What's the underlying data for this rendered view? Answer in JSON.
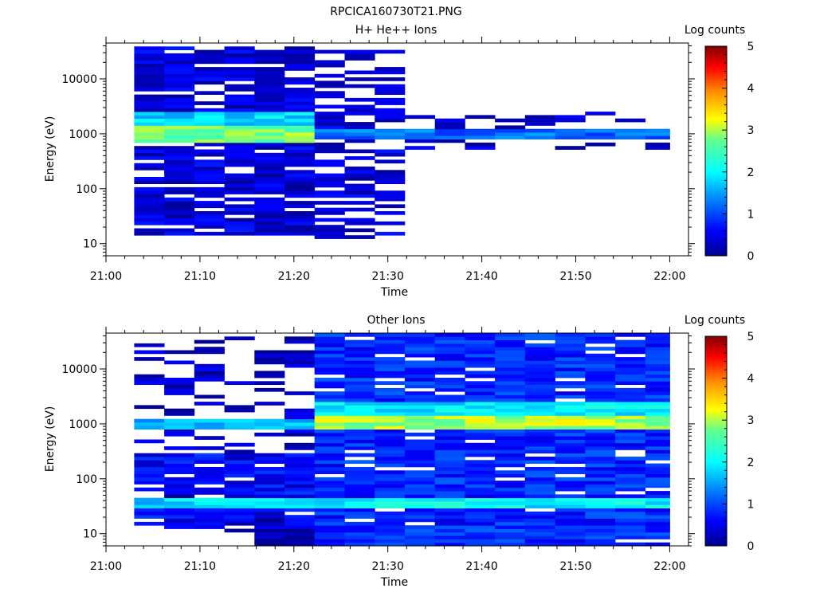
{
  "figure": {
    "title": "RPCICA160730T21.PNG"
  },
  "chart_data": [
    {
      "type": "heatmap",
      "title": "H+ He++ Ions",
      "xlabel": "Time",
      "ylabel": "Energy (eV)",
      "x_ticks": [
        "21:00",
        "21:10",
        "21:20",
        "21:30",
        "21:40",
        "21:50",
        "22:00"
      ],
      "x_range": [
        "21:00",
        "22:02"
      ],
      "y_ticks": [
        "10",
        "100",
        "1000",
        "10000"
      ],
      "y_range": [
        6,
        45000
      ],
      "y_scale": "log",
      "colorbar": {
        "label": "Log counts",
        "ticks": [
          "0",
          "1",
          "2",
          "3",
          "4",
          "5"
        ],
        "range": [
          0,
          5
        ],
        "colormap": "rainbow"
      },
      "bands": [
        {
          "time_start": "21:03",
          "time_end": "21:22",
          "energy_min": 15,
          "energy_max": 40000,
          "base_log_count": 0.4,
          "coverage": 0.8
        },
        {
          "time_start": "21:03",
          "time_end": "21:22",
          "energy_min": 1500,
          "energy_max": 2600,
          "base_log_count": 1.8,
          "coverage": 1.0
        },
        {
          "time_start": "21:03",
          "time_end": "21:22",
          "energy_min": 700,
          "energy_max": 1450,
          "base_log_count": 2.8,
          "coverage": 1.0
        },
        {
          "time_start": "21:22",
          "time_end": "21:32",
          "energy_min": 12,
          "energy_max": 35000,
          "base_log_count": 0.4,
          "coverage": 0.5
        },
        {
          "time_start": "21:22",
          "time_end": "21:32",
          "energy_min": 850,
          "energy_max": 1250,
          "base_log_count": 1.3,
          "coverage": 1.0
        },
        {
          "time_start": "21:32",
          "time_end": "22:00",
          "energy_min": 850,
          "energy_max": 1250,
          "base_log_count": 1.2,
          "coverage": 1.0
        },
        {
          "time_start": "21:32",
          "time_end": "22:00",
          "energy_min": 500,
          "energy_max": 2500,
          "base_log_count": 0.3,
          "coverage": 0.25
        }
      ]
    },
    {
      "type": "heatmap",
      "title": "Other Ions",
      "xlabel": "Time",
      "ylabel": "Energy (eV)",
      "x_ticks": [
        "21:00",
        "21:10",
        "21:20",
        "21:30",
        "21:40",
        "21:50",
        "22:00"
      ],
      "x_range": [
        "21:00",
        "22:02"
      ],
      "y_ticks": [
        "10",
        "100",
        "1000",
        "10000"
      ],
      "y_range": [
        6,
        45000
      ],
      "y_scale": "log",
      "colorbar": {
        "label": "Log counts",
        "ticks": [
          "0",
          "1",
          "2",
          "3",
          "4",
          "5"
        ],
        "range": [
          0,
          5
        ],
        "colormap": "rainbow"
      },
      "bands": [
        {
          "time_start": "21:03",
          "time_end": "21:22",
          "energy_min": 10,
          "energy_max": 40000,
          "base_log_count": 0.3,
          "coverage": 0.35
        },
        {
          "time_start": "21:03",
          "time_end": "21:22",
          "energy_min": 15,
          "energy_max": 300,
          "base_log_count": 0.6,
          "coverage": 0.85
        },
        {
          "time_start": "21:03",
          "time_end": "21:22",
          "energy_min": 28,
          "energy_max": 45,
          "base_log_count": 1.8,
          "coverage": 1.0
        },
        {
          "time_start": "21:03",
          "time_end": "21:22",
          "energy_min": 800,
          "energy_max": 1300,
          "base_log_count": 1.6,
          "coverage": 1.0
        },
        {
          "time_start": "21:16",
          "time_end": "21:22",
          "energy_min": 6,
          "energy_max": 20,
          "base_log_count": 0.2,
          "coverage": 1.0
        },
        {
          "time_start": "21:22",
          "time_end": "22:00",
          "energy_min": 6,
          "energy_max": 45000,
          "base_log_count": 0.8,
          "coverage": 0.92
        },
        {
          "time_start": "21:22",
          "time_end": "22:00",
          "energy_min": 1500,
          "energy_max": 2600,
          "base_log_count": 1.9,
          "coverage": 1.0
        },
        {
          "time_start": "21:22",
          "time_end": "22:00",
          "energy_min": 750,
          "energy_max": 1400,
          "base_log_count": 3.0,
          "coverage": 1.0
        },
        {
          "time_start": "21:22",
          "time_end": "22:00",
          "energy_min": 28,
          "energy_max": 45,
          "base_log_count": 2.0,
          "coverage": 1.0
        }
      ]
    }
  ]
}
